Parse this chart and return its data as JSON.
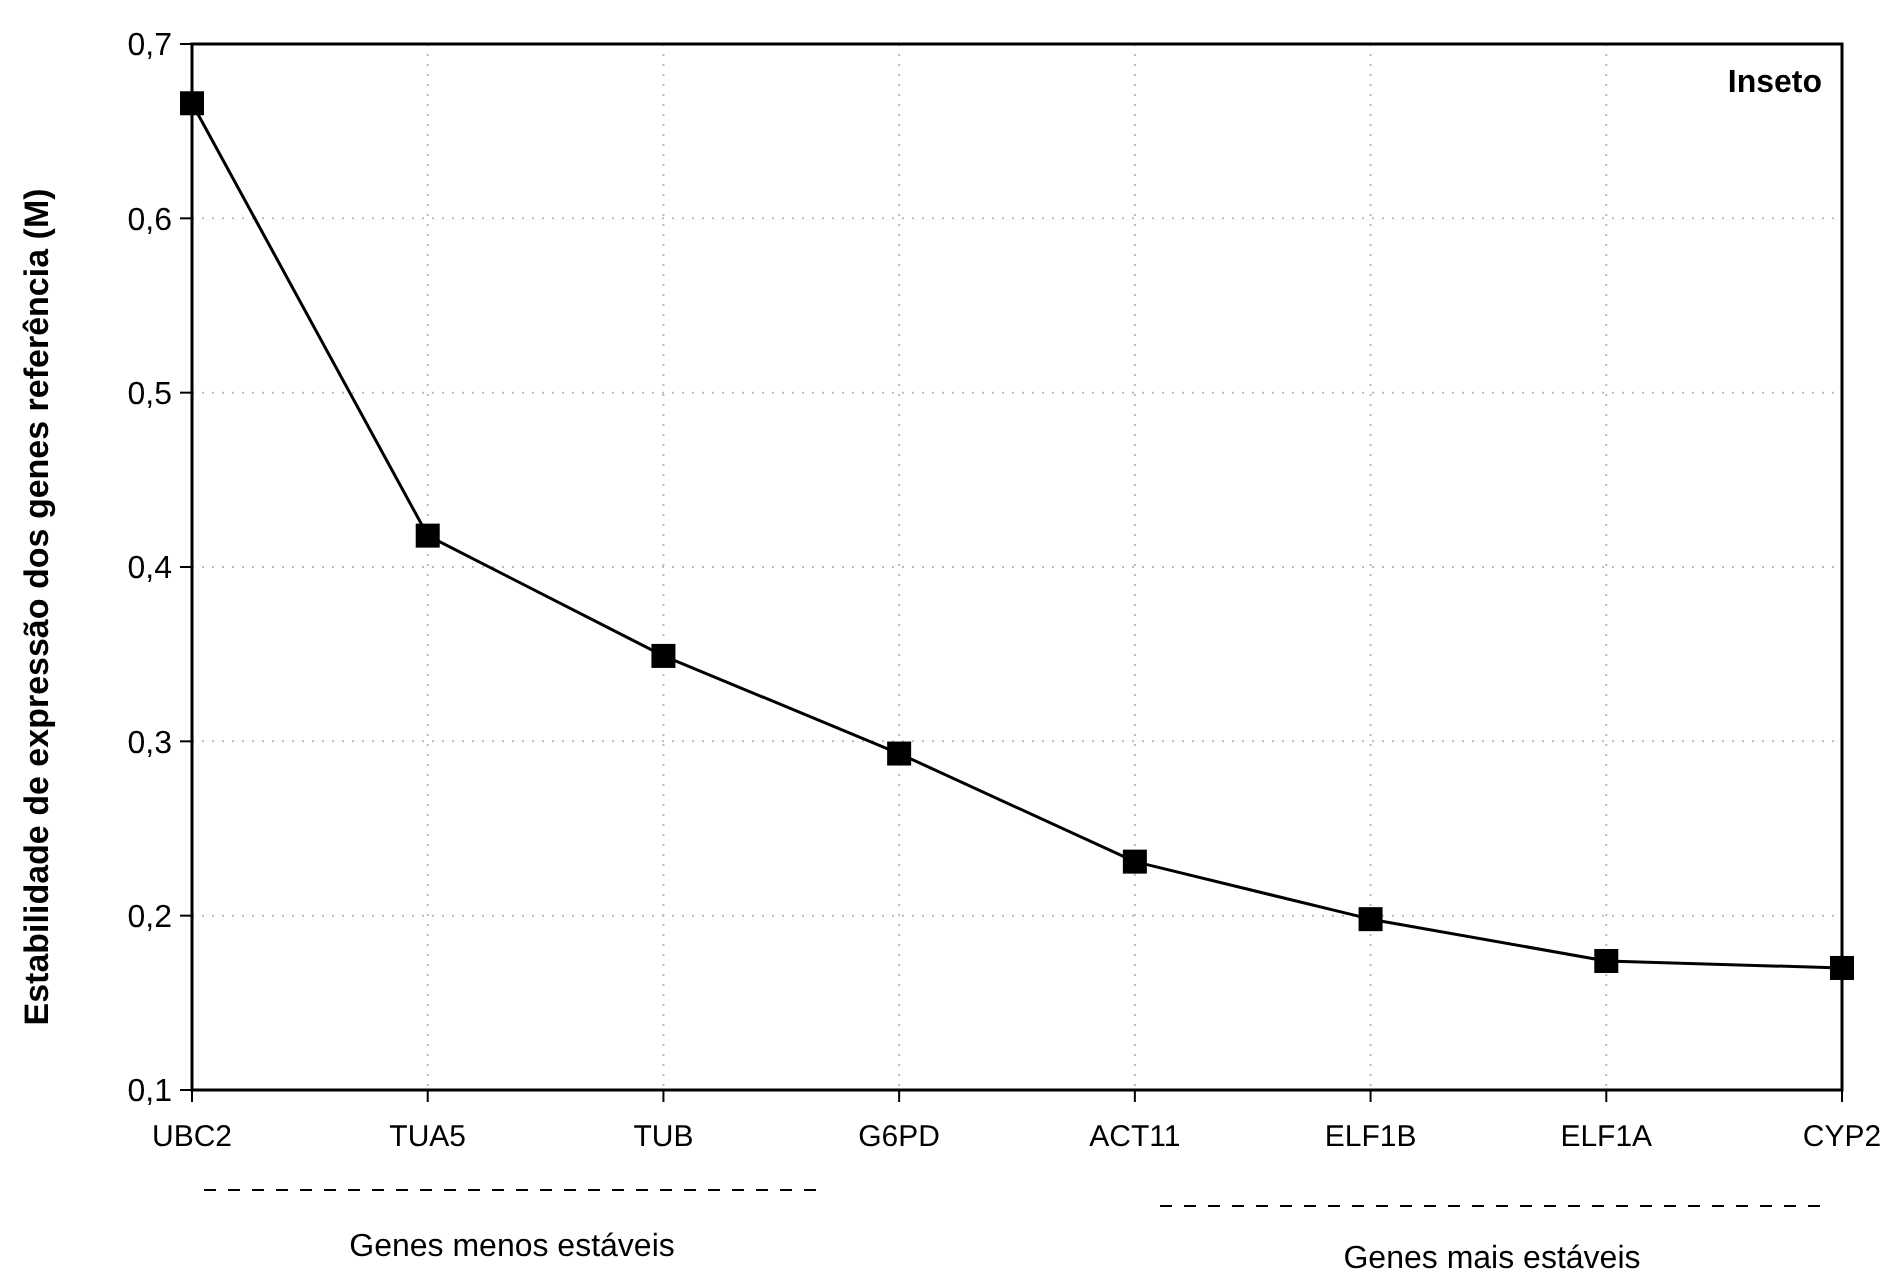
{
  "chart_data": {
    "type": "line",
    "title": "Inseto",
    "ylabel": "Estabilidade de expressão dos genes referência (M)",
    "categories": [
      "UBC2",
      "TUA5",
      "TUB",
      "G6PD",
      "ACT11",
      "ELF1B",
      "ELF1A",
      "CYP2"
    ],
    "series": [
      {
        "color": "#000000",
        "values": [
          0.666,
          0.418,
          0.349,
          0.293,
          0.231,
          0.198,
          0.174,
          0.17
        ]
      }
    ],
    "ylim": [
      0.1,
      0.7
    ],
    "yticks": [
      {
        "value": 0.1,
        "label": "0,1"
      },
      {
        "value": 0.2,
        "label": "0,2"
      },
      {
        "value": 0.3,
        "label": "0,3"
      },
      {
        "value": 0.4,
        "label": "0,4"
      },
      {
        "value": 0.5,
        "label": "0,5"
      },
      {
        "value": 0.6,
        "label": "0,6"
      },
      {
        "value": 0.7,
        "label": "0,7"
      }
    ],
    "grid": true,
    "marker": "square",
    "line_style": "solid",
    "annotations": [
      "Genes menos estáveis",
      "Genes mais estáveis"
    ]
  }
}
